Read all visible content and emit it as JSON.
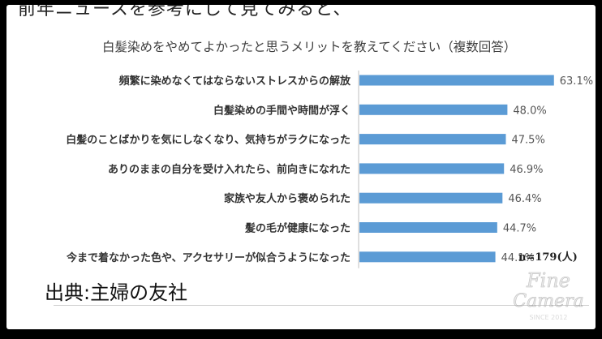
{
  "header_partial_text": "前年ニュースを参考にして見てみると、",
  "source_label": "出典:主婦の友社",
  "sample_note": "n=179(人)",
  "watermark": {
    "line1": "Fine",
    "line2": "Camera",
    "line3": "SINCE 2012"
  },
  "chart_data": {
    "type": "bar",
    "orientation": "horizontal",
    "title": "白髪染めをやめてよかったと思うメリットを教えてください（複数回答）",
    "categories": [
      "頻繁に染めなくてはならないストレスからの解放",
      "白髪染めの手間や時間が浮く",
      "白髪のことばかりを気にしなくなり、気持ちがラクになった",
      "ありのままの自分を受け入れたら、前向きになれた",
      "家族や友人から褒められた",
      "髪の毛が健康になった",
      "今まで着なかった色や、アクセサリーが似合うようになった"
    ],
    "values": [
      63.1,
      48.0,
      47.5,
      46.9,
      46.4,
      44.7,
      44.1
    ],
    "value_labels": [
      "63.1%",
      "48.0%",
      "47.5%",
      "46.9%",
      "46.4%",
      "44.7%",
      "44.1%"
    ],
    "unit": "%",
    "xlim": [
      0,
      70
    ],
    "bar_color": "#5B9BD5",
    "axis_color": "#bfbfbf",
    "grid": false,
    "legend": false
  }
}
